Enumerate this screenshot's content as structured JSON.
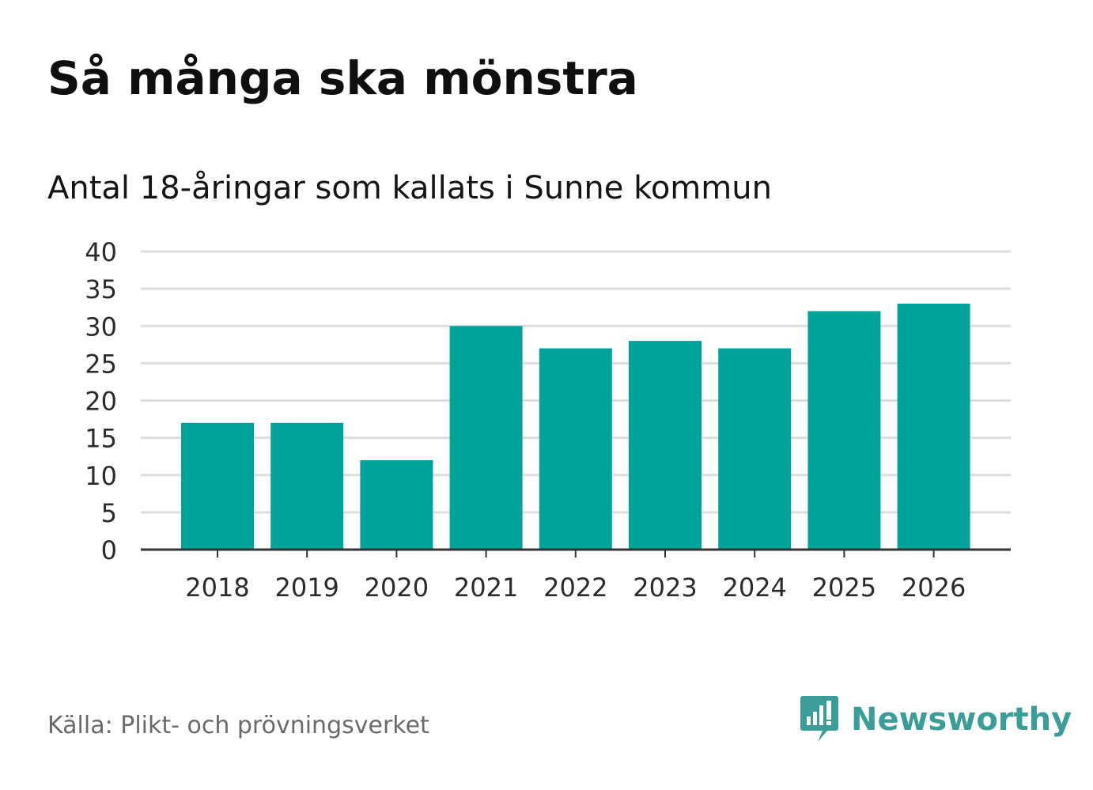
{
  "header": {
    "title": "Så många ska mönstra",
    "subtitle": "Antal 18-åringar som kallats i Sunne kommun"
  },
  "footer": {
    "source": "Källa: Plikt- och prövningsverket",
    "brand": "Newsworthy",
    "brand_icon": "newsworthy-logo-icon"
  },
  "colors": {
    "bar": "#00a39a",
    "grid": "#dddddd",
    "axis": "#333333",
    "brand": "#3a9d98"
  },
  "chart_data": {
    "type": "bar",
    "title": "Så många ska mönstra",
    "subtitle": "Antal 18-åringar som kallats i Sunne kommun",
    "categories": [
      "2018",
      "2019",
      "2020",
      "2021",
      "2022",
      "2023",
      "2024",
      "2025",
      "2026"
    ],
    "values": [
      17,
      17,
      12,
      30,
      27,
      28,
      27,
      32,
      33
    ],
    "xlabel": "",
    "ylabel": "",
    "ylim": [
      0,
      40
    ],
    "yticks": [
      0,
      5,
      10,
      15,
      20,
      25,
      30,
      35,
      40
    ],
    "grid": true,
    "legend": "none"
  }
}
